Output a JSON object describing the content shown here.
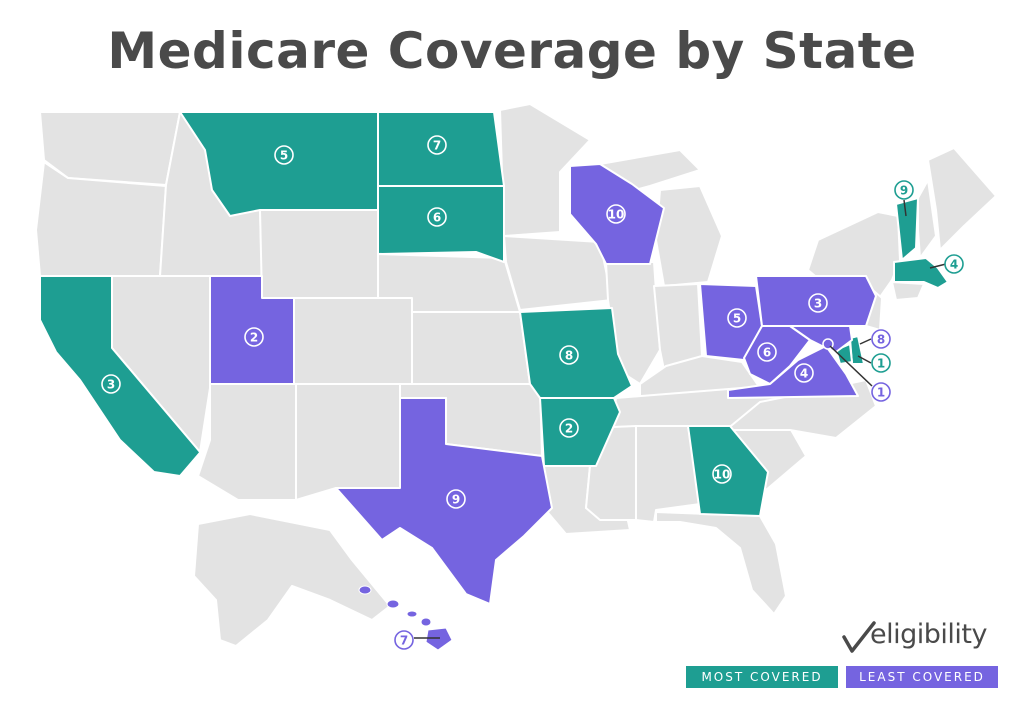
{
  "title": "Medicare Coverage by State",
  "brand": {
    "name": "eligibility",
    "icon": "checkmark-icon"
  },
  "legend": {
    "most": {
      "label": "MOST COVERED",
      "color": "#1e9e92"
    },
    "least": {
      "label": "LEAST COVERED",
      "color": "#7564e0"
    }
  },
  "colors": {
    "base": "#e3e3e3",
    "border": "#ffffff",
    "title": "#4a4a4a"
  },
  "rankings": [
    {
      "state": "Montana",
      "rank": "5",
      "group": "most"
    },
    {
      "state": "North Dakota",
      "rank": "7",
      "group": "most"
    },
    {
      "state": "South Dakota",
      "rank": "6",
      "group": "most"
    },
    {
      "state": "California",
      "rank": "3",
      "group": "most"
    },
    {
      "state": "Missouri",
      "rank": "8",
      "group": "most"
    },
    {
      "state": "Arkansas",
      "rank": "2",
      "group": "most"
    },
    {
      "state": "Georgia",
      "rank": "10",
      "group": "most"
    },
    {
      "state": "Vermont",
      "rank": "9",
      "group": "most"
    },
    {
      "state": "Massachusetts",
      "rank": "4",
      "group": "most"
    },
    {
      "state": "Delaware",
      "rank": "1",
      "group": "most"
    },
    {
      "state": "Utah",
      "rank": "2",
      "group": "least"
    },
    {
      "state": "Texas",
      "rank": "9",
      "group": "least"
    },
    {
      "state": "Wisconsin",
      "rank": "10",
      "group": "least"
    },
    {
      "state": "Ohio",
      "rank": "5",
      "group": "least"
    },
    {
      "state": "Pennsylvania",
      "rank": "3",
      "group": "least"
    },
    {
      "state": "West Virginia",
      "rank": "6",
      "group": "least"
    },
    {
      "state": "Virginia",
      "rank": "4",
      "group": "least"
    },
    {
      "state": "Maryland",
      "rank": "8",
      "group": "least"
    },
    {
      "state": "District of Columbia",
      "rank": "1",
      "group": "least"
    },
    {
      "state": "Hawaii",
      "rank": "7",
      "group": "least"
    }
  ]
}
